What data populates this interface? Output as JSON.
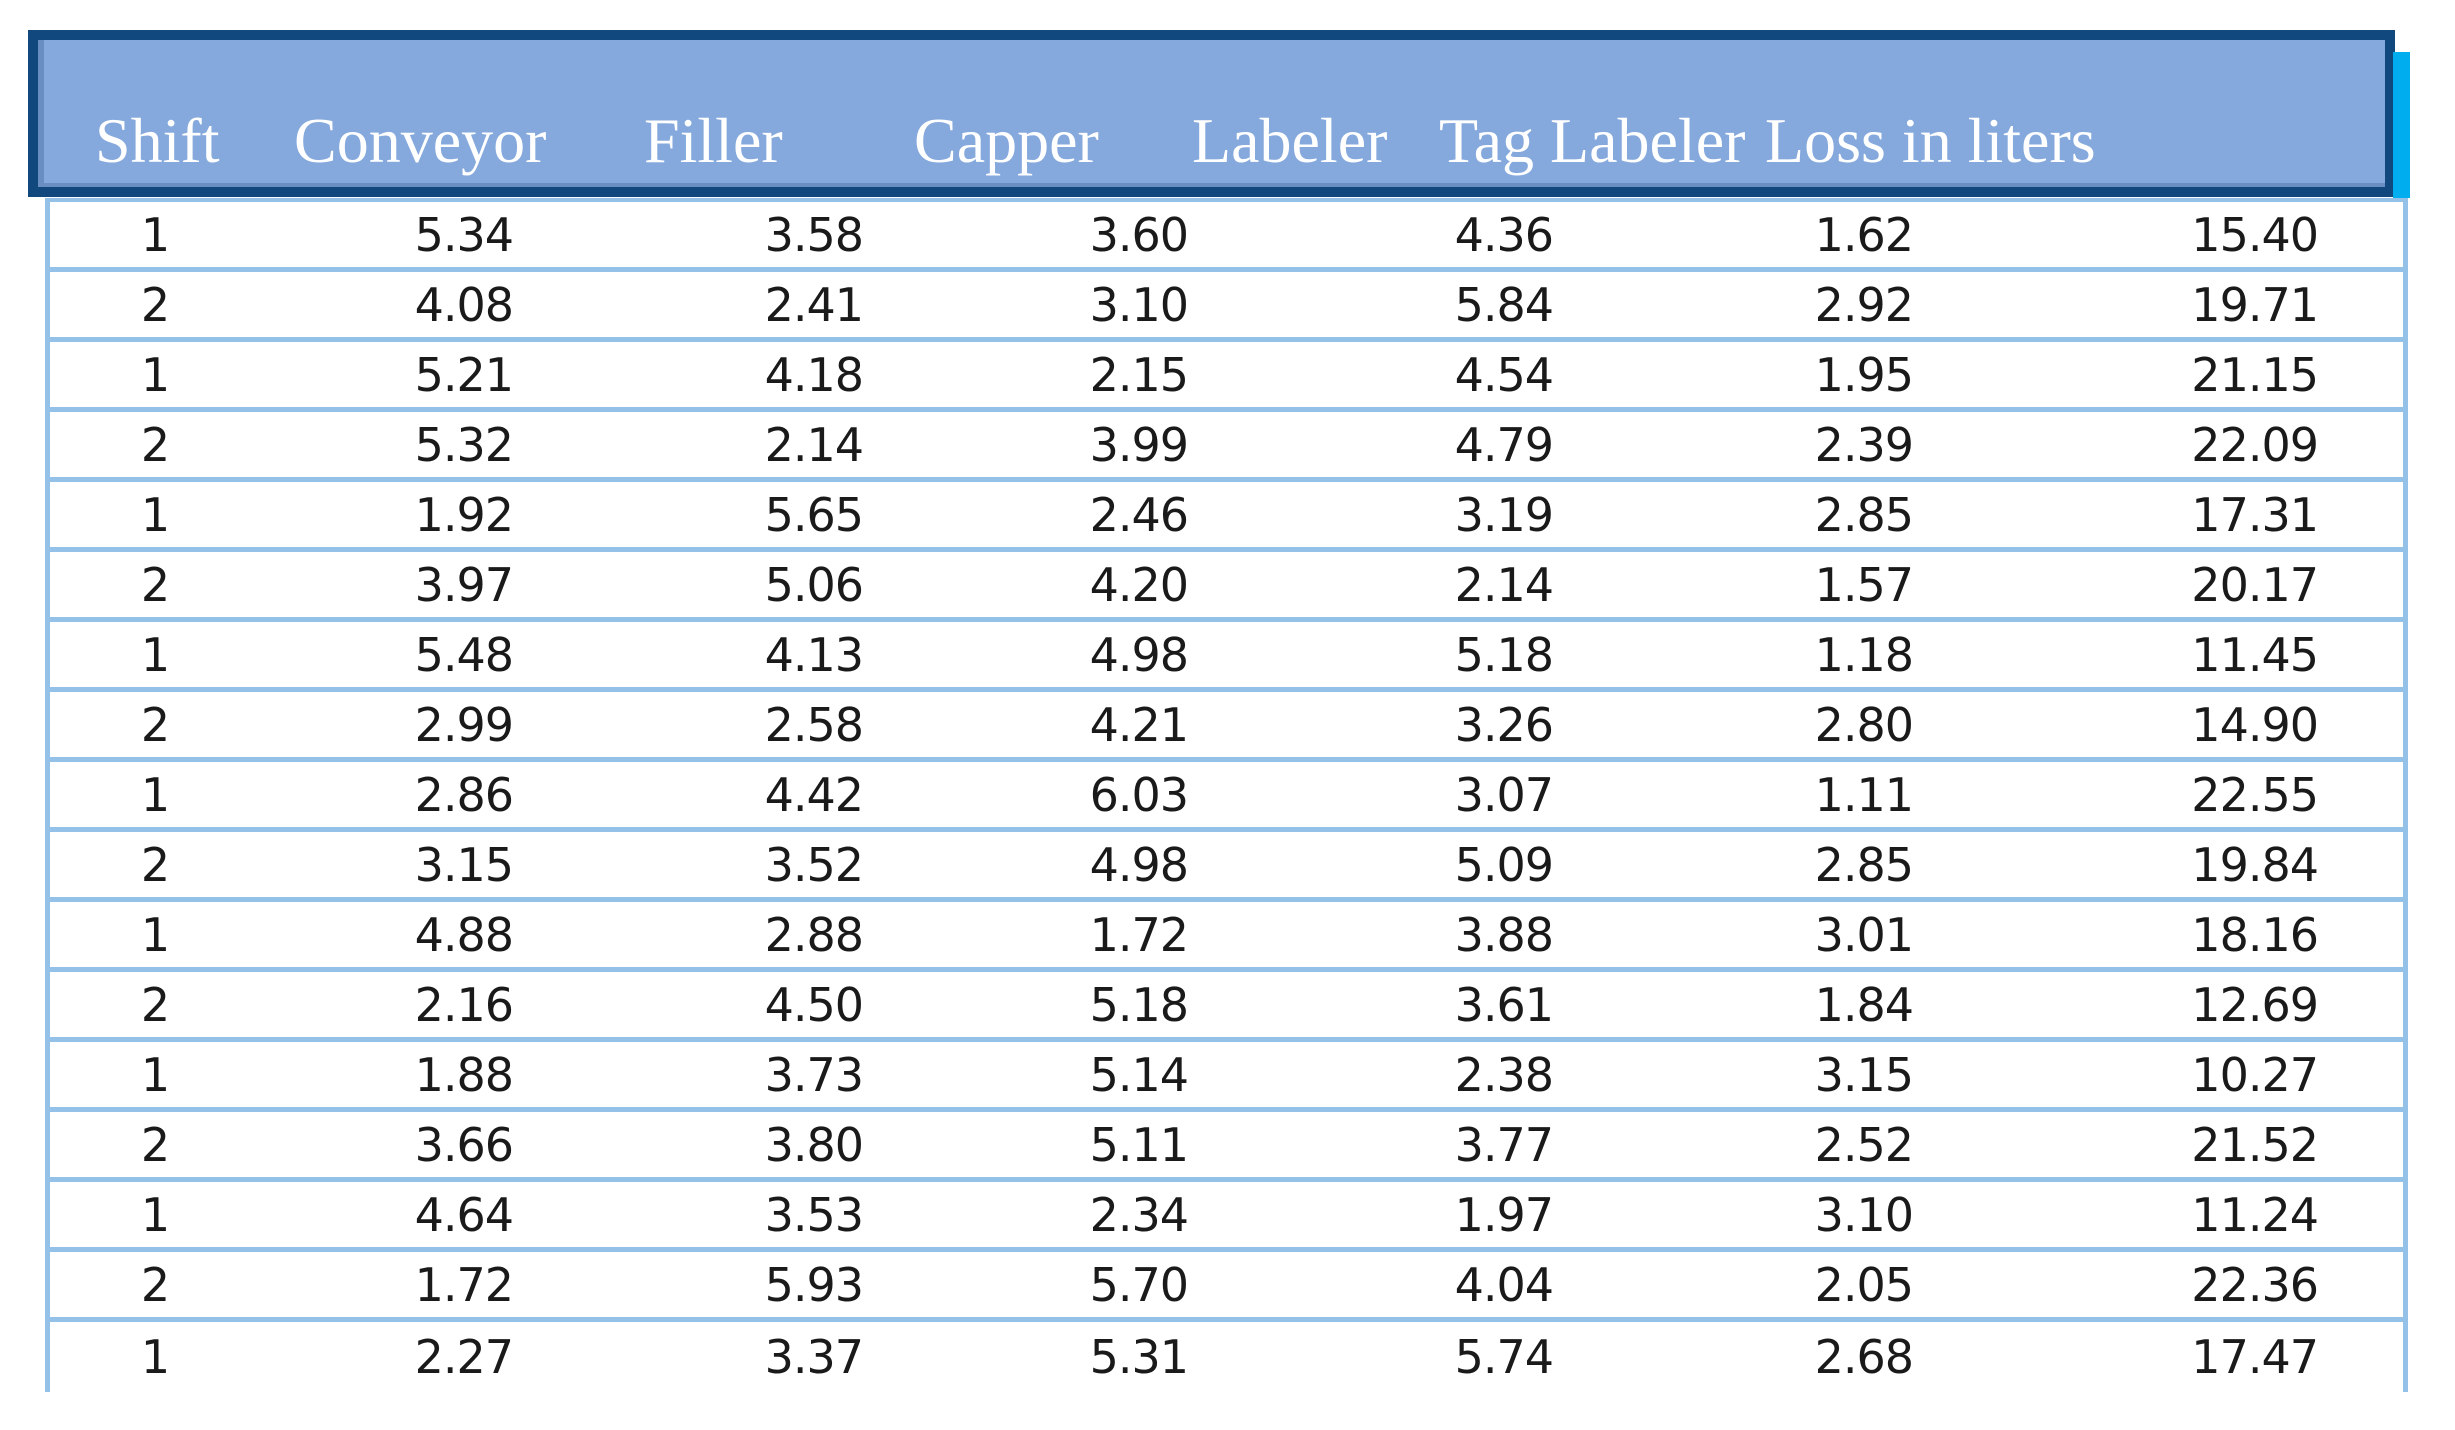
{
  "colors": {
    "banner_fill": "#85A9DC",
    "banner_border": "#11497F",
    "banner_shadow": "#00AEEF",
    "grid_line": "#93C1E8",
    "header_text": "#FFFFFF",
    "cell_text": "#1A1A1A",
    "background": "#FFFFFF"
  },
  "chart_data": {
    "type": "table",
    "columns": [
      "Shift",
      "Conveyor",
      "Filler",
      "Capper",
      "Labeler",
      "Tag Labeler",
      "Loss in liters"
    ],
    "rows": [
      [
        "1",
        "5.34",
        "3.58",
        "3.60",
        "4.36",
        "1.62",
        "15.40"
      ],
      [
        "2",
        "4.08",
        "2.41",
        "3.10",
        "5.84",
        "2.92",
        "19.71"
      ],
      [
        "1",
        "5.21",
        "4.18",
        "2.15",
        "4.54",
        "1.95",
        "21.15"
      ],
      [
        "2",
        "5.32",
        "2.14",
        "3.99",
        "4.79",
        "2.39",
        "22.09"
      ],
      [
        "1",
        "1.92",
        "5.65",
        "2.46",
        "3.19",
        "2.85",
        "17.31"
      ],
      [
        "2",
        "3.97",
        "5.06",
        "4.20",
        "2.14",
        "1.57",
        "20.17"
      ],
      [
        "1",
        "5.48",
        "4.13",
        "4.98",
        "5.18",
        "1.18",
        "11.45"
      ],
      [
        "2",
        "2.99",
        "2.58",
        "4.21",
        "3.26",
        "2.80",
        "14.90"
      ],
      [
        "1",
        "2.86",
        "4.42",
        "6.03",
        "3.07",
        "1.11",
        "22.55"
      ],
      [
        "2",
        "3.15",
        "3.52",
        "4.98",
        "5.09",
        "2.85",
        "19.84"
      ],
      [
        "1",
        "4.88",
        "2.88",
        "1.72",
        "3.88",
        "3.01",
        "18.16"
      ],
      [
        "2",
        "2.16",
        "4.50",
        "5.18",
        "3.61",
        "1.84",
        "12.69"
      ],
      [
        "1",
        "1.88",
        "3.73",
        "5.14",
        "2.38",
        "3.15",
        "10.27"
      ],
      [
        "2",
        "3.66",
        "3.80",
        "5.11",
        "3.77",
        "2.52",
        "21.52"
      ],
      [
        "1",
        "4.64",
        "3.53",
        "2.34",
        "1.97",
        "3.10",
        "11.24"
      ],
      [
        "2",
        "1.72",
        "5.93",
        "5.70",
        "4.04",
        "2.05",
        "22.36"
      ],
      [
        "1",
        "2.27",
        "3.37",
        "5.31",
        "5.74",
        "2.68",
        "17.47"
      ]
    ],
    "layout": {
      "header_position": "top-banner",
      "grid": "horizontal-only",
      "first_column_align": "center",
      "numeric_align": "right"
    }
  }
}
